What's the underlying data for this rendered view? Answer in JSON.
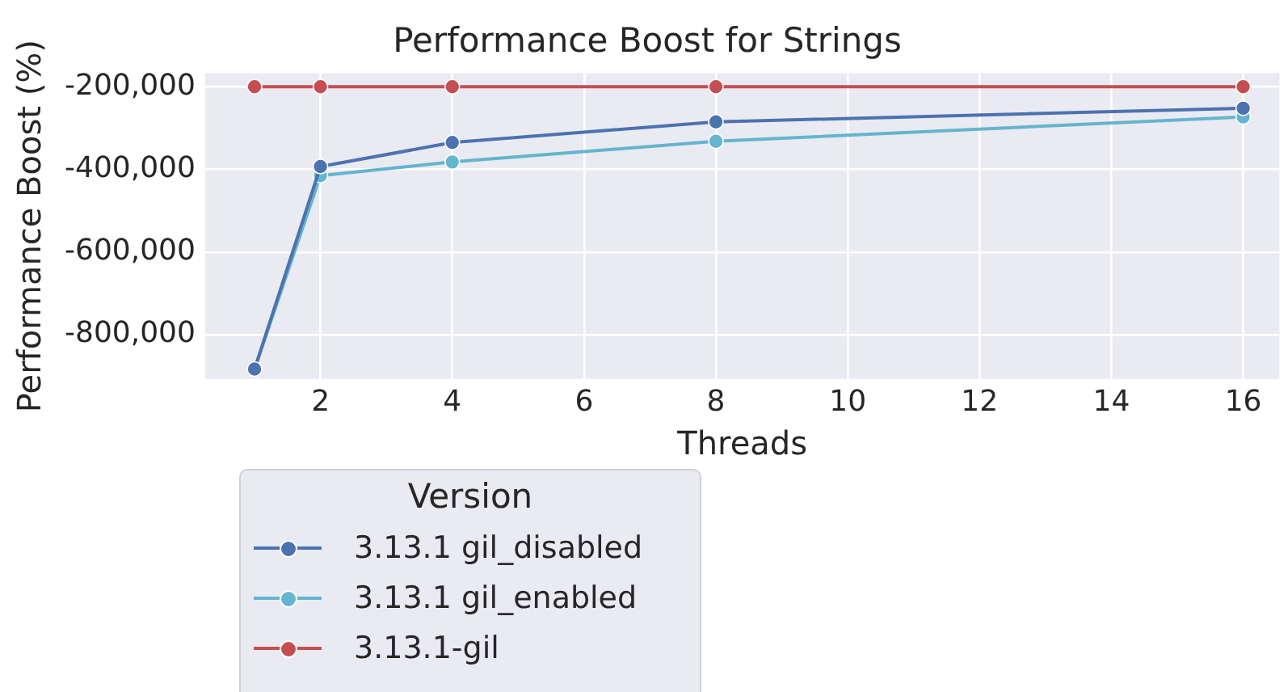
{
  "chart_data": {
    "type": "line",
    "title": "Performance Boost for Strings",
    "xlabel": "Threads",
    "ylabel": "Performance Boost (%)",
    "legend_title": "Version",
    "x": [
      1,
      2,
      4,
      8,
      16
    ],
    "series": [
      {
        "name": "3.13.1 gil_disabled",
        "color": "#4c72b0",
        "values": [
          -883000,
          -393000,
          -335000,
          -285000,
          -252000
        ]
      },
      {
        "name": "3.13.1 gil_enabled",
        "color": "#64b5cd",
        "values": [
          -883000,
          -415000,
          -382000,
          -332000,
          -273000
        ]
      },
      {
        "name": "3.13.1-gil",
        "color": "#c44e52",
        "values": [
          -200000,
          -200000,
          -200000,
          -200000,
          -200000
        ]
      }
    ],
    "xlim": [
      0.25,
      16.55
    ],
    "xticks": [
      2,
      4,
      6,
      8,
      10,
      12,
      14,
      16
    ],
    "ylim": [
      -907000,
      -167000
    ],
    "yticks": [
      {
        "value": -800000,
        "label": "-800,000"
      },
      {
        "value": -600000,
        "label": "-600,000"
      },
      {
        "value": -400000,
        "label": "-400,000"
      },
      {
        "value": -200000,
        "label": "-200,000"
      }
    ],
    "grid": true,
    "legend": "bottom left",
    "marker": "circle",
    "line_style": "solid"
  }
}
